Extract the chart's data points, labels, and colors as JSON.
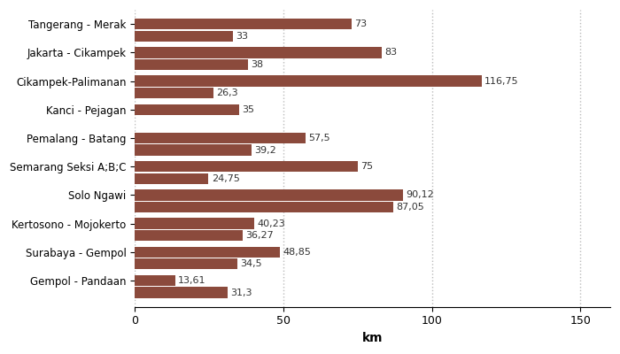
{
  "categories": [
    "Tangerang - Merak",
    "Jakarta - Cikampek",
    "Cikampek-Palimanan",
    "Kanci - Pejagan",
    "Pemalang - Batang",
    "Semarang Seksi A;B;C",
    "Solo Ngawi",
    "Kertosono - Mojokerto",
    "Surabaya - Gempol",
    "Gempol - Pandaan"
  ],
  "bar1_values": [
    73,
    83,
    116.75,
    35,
    57.5,
    75,
    90.12,
    40.23,
    48.85,
    13.61
  ],
  "bar2_values": [
    33,
    38,
    26.3,
    0,
    39.2,
    24.75,
    87.05,
    36.27,
    34.5,
    31.3
  ],
  "bar1_labels": [
    "73",
    "83",
    "116,75",
    "35",
    "57,5",
    "75",
    "90,12",
    "40,23",
    "48,85",
    "13,61"
  ],
  "bar2_labels": [
    "33",
    "38",
    "26,3",
    "",
    "39,2",
    "24,75",
    "87,05",
    "36,27",
    "34,5",
    "31,3"
  ],
  "bar_color": "#8B4A3C",
  "xlabel": "km",
  "xlim": [
    0,
    160
  ],
  "xticks": [
    0,
    50,
    100,
    150
  ],
  "grid_color": "#bbbbbb",
  "background_color": "#ffffff",
  "label_fontsize": 8.5,
  "value_fontsize": 8,
  "xlabel_fontsize": 10
}
